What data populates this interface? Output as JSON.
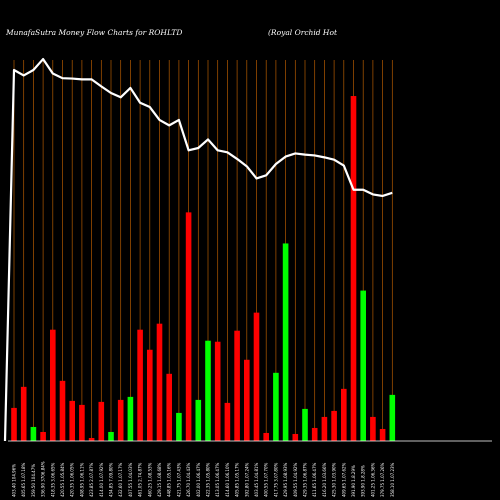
{
  "chart_data": {
    "type": "bar",
    "title": "MunafaSutra  Money Flow  Charts for ROHLTD",
    "subtitle": "(Royal Orchid Hot",
    "colors": {
      "background": "#000000",
      "grid": "#b35a00",
      "axis": "#ffffff",
      "line": "#ffffff",
      "up": "#00ff00",
      "down": "#ff0000"
    },
    "grid": true,
    "ylim_bars": [
      0,
      360
    ],
    "ylim_line": [
      0,
      100
    ],
    "categories": [
      "403.40 104.96%",
      "405.65 1.07.18%",
      "359.50 104.47%",
      "336.90 3706.84%",
      "418.35 3.06.65%",
      "420.55 1.05.84%",
      "420.35 1.06.05%",
      "408.95 1.06.11%",
      "423.85 2.07.87%",
      "414.00 1.07.92%",
      "434.85 7.09.80%",
      "432.60 1.07.17%",
      "407.55 1.04.03%",
      "461.05 2.74.87%",
      "460.25 1.08.53%",
      "429.15 1.08.68%",
      "448.85 1.05.16%",
      "421.75 1.07.43%",
      "426.70 1.04.43%",
      "402.00 1.06.47%",
      "422.35 1.05.80%",
      "413.05 1.06.47%",
      "414.60 1.06.10%",
      "405.85 1.05.17%",
      "392.80 1.07.24%",
      "403.45 1.04.81%",
      "400.55 1.07.70%",
      "417.75 3.07.80%",
      "429.95 1.08.93%",
      "409.55 1.04.92%",
      "429.35 1.06.87%",
      "411.65 1.06.47%",
      "416.20 1.03.66%",
      "425.30 1.03.90%",
      "409.65 1.07.62%",
      "391.90 1.8.29%",
      "393.90 1.8.28%",
      "401.25 1.06.36%",
      "379.75 1.07.26%",
      "358.10 1.07.23%"
    ],
    "bars": [
      {
        "value": 33,
        "dir": "down"
      },
      {
        "value": 54,
        "dir": "down"
      },
      {
        "value": 14,
        "dir": "up"
      },
      {
        "value": 9,
        "dir": "down"
      },
      {
        "value": 111,
        "dir": "down"
      },
      {
        "value": 60,
        "dir": "down"
      },
      {
        "value": 40,
        "dir": "down"
      },
      {
        "value": 36,
        "dir": "down"
      },
      {
        "value": 3,
        "dir": "down"
      },
      {
        "value": 39,
        "dir": "down"
      },
      {
        "value": 9,
        "dir": "up"
      },
      {
        "value": 41,
        "dir": "down"
      },
      {
        "value": 44,
        "dir": "up"
      },
      {
        "value": 111,
        "dir": "down"
      },
      {
        "value": 91,
        "dir": "down"
      },
      {
        "value": 117,
        "dir": "down"
      },
      {
        "value": 67,
        "dir": "down"
      },
      {
        "value": 28,
        "dir": "up"
      },
      {
        "value": 228,
        "dir": "down"
      },
      {
        "value": 41,
        "dir": "up"
      },
      {
        "value": 100,
        "dir": "up"
      },
      {
        "value": 99,
        "dir": "down"
      },
      {
        "value": 38,
        "dir": "down"
      },
      {
        "value": 110,
        "dir": "down"
      },
      {
        "value": 81,
        "dir": "down"
      },
      {
        "value": 128,
        "dir": "down"
      },
      {
        "value": 8,
        "dir": "down"
      },
      {
        "value": 68,
        "dir": "up"
      },
      {
        "value": 197,
        "dir": "up"
      },
      {
        "value": 7,
        "dir": "down"
      },
      {
        "value": 32,
        "dir": "up"
      },
      {
        "value": 13,
        "dir": "down"
      },
      {
        "value": 24,
        "dir": "down"
      },
      {
        "value": 30,
        "dir": "down"
      },
      {
        "value": 52,
        "dir": "down"
      },
      {
        "value": 344,
        "dir": "down"
      },
      {
        "value": 150,
        "dir": "up"
      },
      {
        "value": 24,
        "dir": "down"
      },
      {
        "value": 12,
        "dir": "down"
      },
      {
        "value": 46,
        "dir": "up"
      }
    ],
    "line": [
      100,
      98.6,
      100,
      102.8,
      99.1,
      97.9,
      97.8,
      97.6,
      97.6,
      95.8,
      94.1,
      93.0,
      95.4,
      91.6,
      90.5,
      87.2,
      85.8,
      87.2,
      79.4,
      80.0,
      82.2,
      79.4,
      78.9,
      77.2,
      75.3,
      72.2,
      73.0,
      75.9,
      77.8,
      78.6,
      78.3,
      78.1,
      77.6,
      77.0,
      75.5,
      69.3,
      69.3,
      68.1,
      67.7,
      68.5
    ]
  }
}
